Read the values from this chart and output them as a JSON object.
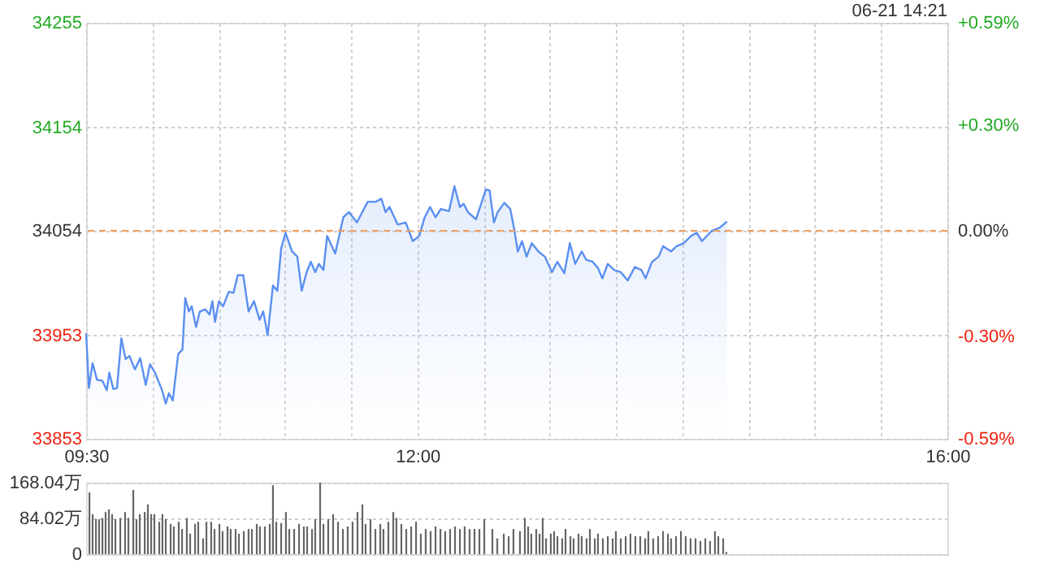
{
  "chart_data": [
    {
      "type": "area",
      "annotations": [
        "06-21 14:21"
      ],
      "grid": true,
      "xlim": [
        9.5,
        16
      ],
      "xticks": [
        {
          "value": 9.5,
          "label": "09:30"
        },
        {
          "value": 10,
          "label": null
        },
        {
          "value": 10.5,
          "label": null
        },
        {
          "value": 11,
          "label": null
        },
        {
          "value": 11.5,
          "label": null
        },
        {
          "value": 12,
          "label": "12:00"
        },
        {
          "value": 12.5,
          "label": null
        },
        {
          "value": 13,
          "label": null
        },
        {
          "value": 13.5,
          "label": null
        },
        {
          "value": 14,
          "label": null
        },
        {
          "value": 14.5,
          "label": null
        },
        {
          "value": 15,
          "label": null
        },
        {
          "value": 15.5,
          "label": null
        },
        {
          "value": 16,
          "label": "16:00"
        }
      ],
      "ylim": [
        33853,
        34255
      ],
      "yticks": [
        33853,
        33953,
        34054,
        34154,
        34255
      ],
      "y2lim": [
        -0.59,
        0.59
      ],
      "y2ticks": [
        {
          "value": -0.59,
          "label": "-0.59%"
        },
        {
          "value": -0.3,
          "label": "-0.30%"
        },
        {
          "value": 0,
          "label": "0.00%"
        },
        {
          "value": 0.3,
          "label": "+0.30%"
        },
        {
          "value": 0.59,
          "label": "+0.59%"
        }
      ],
      "ref_lines": [
        {
          "axis": "y2",
          "value": 0,
          "color": "#f0a060",
          "line_style": "dashed"
        }
      ],
      "series": [
        {
          "color": "#5b8ff0",
          "x": [
            9.5,
            9.521,
            9.549,
            9.582,
            9.623,
            9.656,
            9.675,
            9.705,
            9.733,
            9.766,
            9.798,
            9.827,
            9.868,
            9.908,
            9.95,
            9.982,
            10.019,
            10.073,
            10.101,
            10.125,
            10.154,
            10.195,
            10.227,
            10.248,
            10.276,
            10.297,
            10.33,
            10.358,
            10.399,
            10.432,
            10.453,
            10.473,
            10.502,
            10.534,
            10.576,
            10.612,
            10.644,
            10.686,
            10.726,
            10.767,
            10.809,
            10.837,
            10.87,
            10.91,
            10.943,
            10.972,
            11.005,
            11.054,
            11.094,
            11.127,
            11.164,
            11.196,
            11.229,
            11.257,
            11.291,
            11.319,
            11.38,
            11.441,
            11.483,
            11.544,
            11.625,
            11.687,
            11.728,
            11.76,
            11.79,
            11.851,
            11.912,
            11.965,
            12.014,
            12.055,
            12.096,
            12.137,
            12.177,
            12.239,
            12.28,
            12.321,
            12.349,
            12.382,
            12.443,
            12.517,
            12.545,
            12.578,
            12.606,
            12.656,
            12.701,
            12.729,
            12.758,
            12.79,
            12.824,
            12.864,
            12.913,
            12.962,
            13.016,
            13.056,
            13.109,
            13.151,
            13.191,
            13.24,
            13.274,
            13.323,
            13.363,
            13.396,
            13.437,
            13.486,
            13.535,
            13.588,
            13.641,
            13.691,
            13.722,
            13.771,
            13.821,
            13.854,
            13.915,
            13.956,
            14.009,
            14.066,
            14.108,
            14.148,
            14.222,
            14.283,
            14.336
          ],
          "values": [
            33955,
            33902,
            33926,
            33910,
            33909,
            33900,
            33917,
            33901,
            33902,
            33950,
            33930,
            33933,
            33920,
            33931,
            33905,
            33925,
            33917,
            33900,
            33887,
            33897,
            33890,
            33935,
            33939,
            33989,
            33976,
            33981,
            33961,
            33976,
            33978,
            33973,
            33986,
            33966,
            33986,
            33981,
            33995,
            33994,
            34011,
            34011,
            33976,
            33986,
            33968,
            33976,
            33953,
            34001,
            33996,
            34037,
            34052,
            34034,
            34029,
            33996,
            34014,
            34024,
            34014,
            34022,
            34016,
            34049,
            34032,
            34067,
            34072,
            34062,
            34082,
            34082,
            34085,
            34072,
            34077,
            34060,
            34062,
            34044,
            34049,
            34067,
            34077,
            34067,
            34075,
            34073,
            34097,
            34077,
            34080,
            34072,
            34065,
            34094,
            34093,
            34062,
            34072,
            34081,
            34075,
            34057,
            34034,
            34044,
            34029,
            34042,
            34034,
            34029,
            34014,
            34024,
            34013,
            34042,
            34022,
            34034,
            34026,
            34024,
            34018,
            34008,
            34022,
            34016,
            34014,
            34006,
            34019,
            34016,
            34008,
            34024,
            34029,
            34039,
            34034,
            34039,
            34042,
            34049,
            34052,
            34044,
            34054,
            34057,
            34063
          ]
        }
      ]
    },
    {
      "type": "bar",
      "grid": "y",
      "tick_labels": "y",
      "xlim": [
        9.5,
        16
      ],
      "ylim": [
        0,
        168.04
      ],
      "yticks": [
        0,
        {
          "value": 84.02,
          "label": "84.02万"
        },
        {
          "value": 168.04,
          "label": "168.04万"
        }
      ],
      "series": [
        {
          "color": "#666666",
          "x": [
            9.525,
            9.549,
            9.574,
            9.598,
            9.623,
            9.647,
            9.672,
            9.696,
            9.721,
            9.758,
            9.794,
            9.819,
            9.856,
            9.88,
            9.905,
            9.942,
            9.966,
            9.991,
            10.015,
            10.052,
            10.076,
            10.101,
            10.138,
            10.162,
            10.199,
            10.224,
            10.26,
            10.285,
            10.322,
            10.346,
            10.383,
            10.408,
            10.444,
            10.469,
            10.506,
            10.53,
            10.567,
            10.591,
            10.628,
            10.653,
            10.69,
            10.726,
            10.751,
            10.788,
            10.812,
            10.849,
            10.886,
            10.91,
            10.935,
            10.972,
            11.008,
            11.033,
            11.07,
            11.107,
            11.143,
            11.168,
            11.205,
            11.229,
            11.266,
            11.291,
            11.327,
            11.364,
            11.401,
            11.438,
            11.474,
            11.511,
            11.548,
            11.585,
            11.609,
            11.646,
            11.683,
            11.72,
            11.744,
            11.781,
            11.818,
            11.842,
            11.879,
            11.916,
            11.953,
            11.99,
            12.026,
            12.063,
            12.1,
            12.137,
            12.174,
            12.21,
            12.247,
            12.284,
            12.321,
            12.357,
            12.394,
            12.431,
            12.468,
            12.505,
            12.566,
            12.603,
            12.652,
            12.689,
            12.725,
            12.774,
            12.811,
            12.836,
            12.86,
            12.897,
            12.922,
            12.946,
            12.971,
            13.007,
            13.032,
            13.057,
            13.093,
            13.118,
            13.155,
            13.179,
            13.216,
            13.24,
            13.277,
            13.302,
            13.339,
            13.363,
            13.4,
            13.437,
            13.474,
            13.498,
            13.535,
            13.572,
            13.608,
            13.645,
            13.682,
            13.719,
            13.743,
            13.78,
            13.817,
            13.854,
            13.891,
            13.915,
            13.952,
            13.989,
            14.025,
            14.062,
            14.099,
            14.136,
            14.173,
            14.209,
            14.246,
            14.271,
            14.308,
            14.332
          ],
          "values": [
            145,
            94,
            82,
            82,
            85,
            99,
            105,
            94,
            82,
            85,
            99,
            85,
            151,
            82,
            94,
            99,
            117,
            94,
            94,
            76,
            94,
            82,
            71,
            65,
            76,
            59,
            85,
            48,
            71,
            76,
            37,
            76,
            76,
            59,
            71,
            54,
            65,
            59,
            59,
            48,
            54,
            59,
            59,
            71,
            65,
            65,
            71,
            162,
            76,
            73,
            99,
            59,
            59,
            71,
            65,
            65,
            59,
            82,
            168,
            71,
            82,
            94,
            76,
            59,
            65,
            76,
            99,
            117,
            71,
            82,
            59,
            71,
            59,
            76,
            99,
            85,
            71,
            59,
            65,
            76,
            48,
            59,
            54,
            65,
            59,
            54,
            59,
            65,
            59,
            65,
            59,
            59,
            59,
            82,
            59,
            37,
            48,
            42,
            59,
            54,
            85,
            65,
            48,
            59,
            48,
            85,
            37,
            48,
            54,
            42,
            37,
            59,
            42,
            37,
            48,
            42,
            37,
            59,
            37,
            48,
            37,
            42,
            37,
            54,
            37,
            42,
            48,
            42,
            42,
            37,
            54,
            37,
            42,
            54,
            48,
            37,
            42,
            54,
            42,
            37,
            37,
            31,
            37,
            31,
            54,
            42,
            37,
            5
          ]
        }
      ]
    }
  ]
}
